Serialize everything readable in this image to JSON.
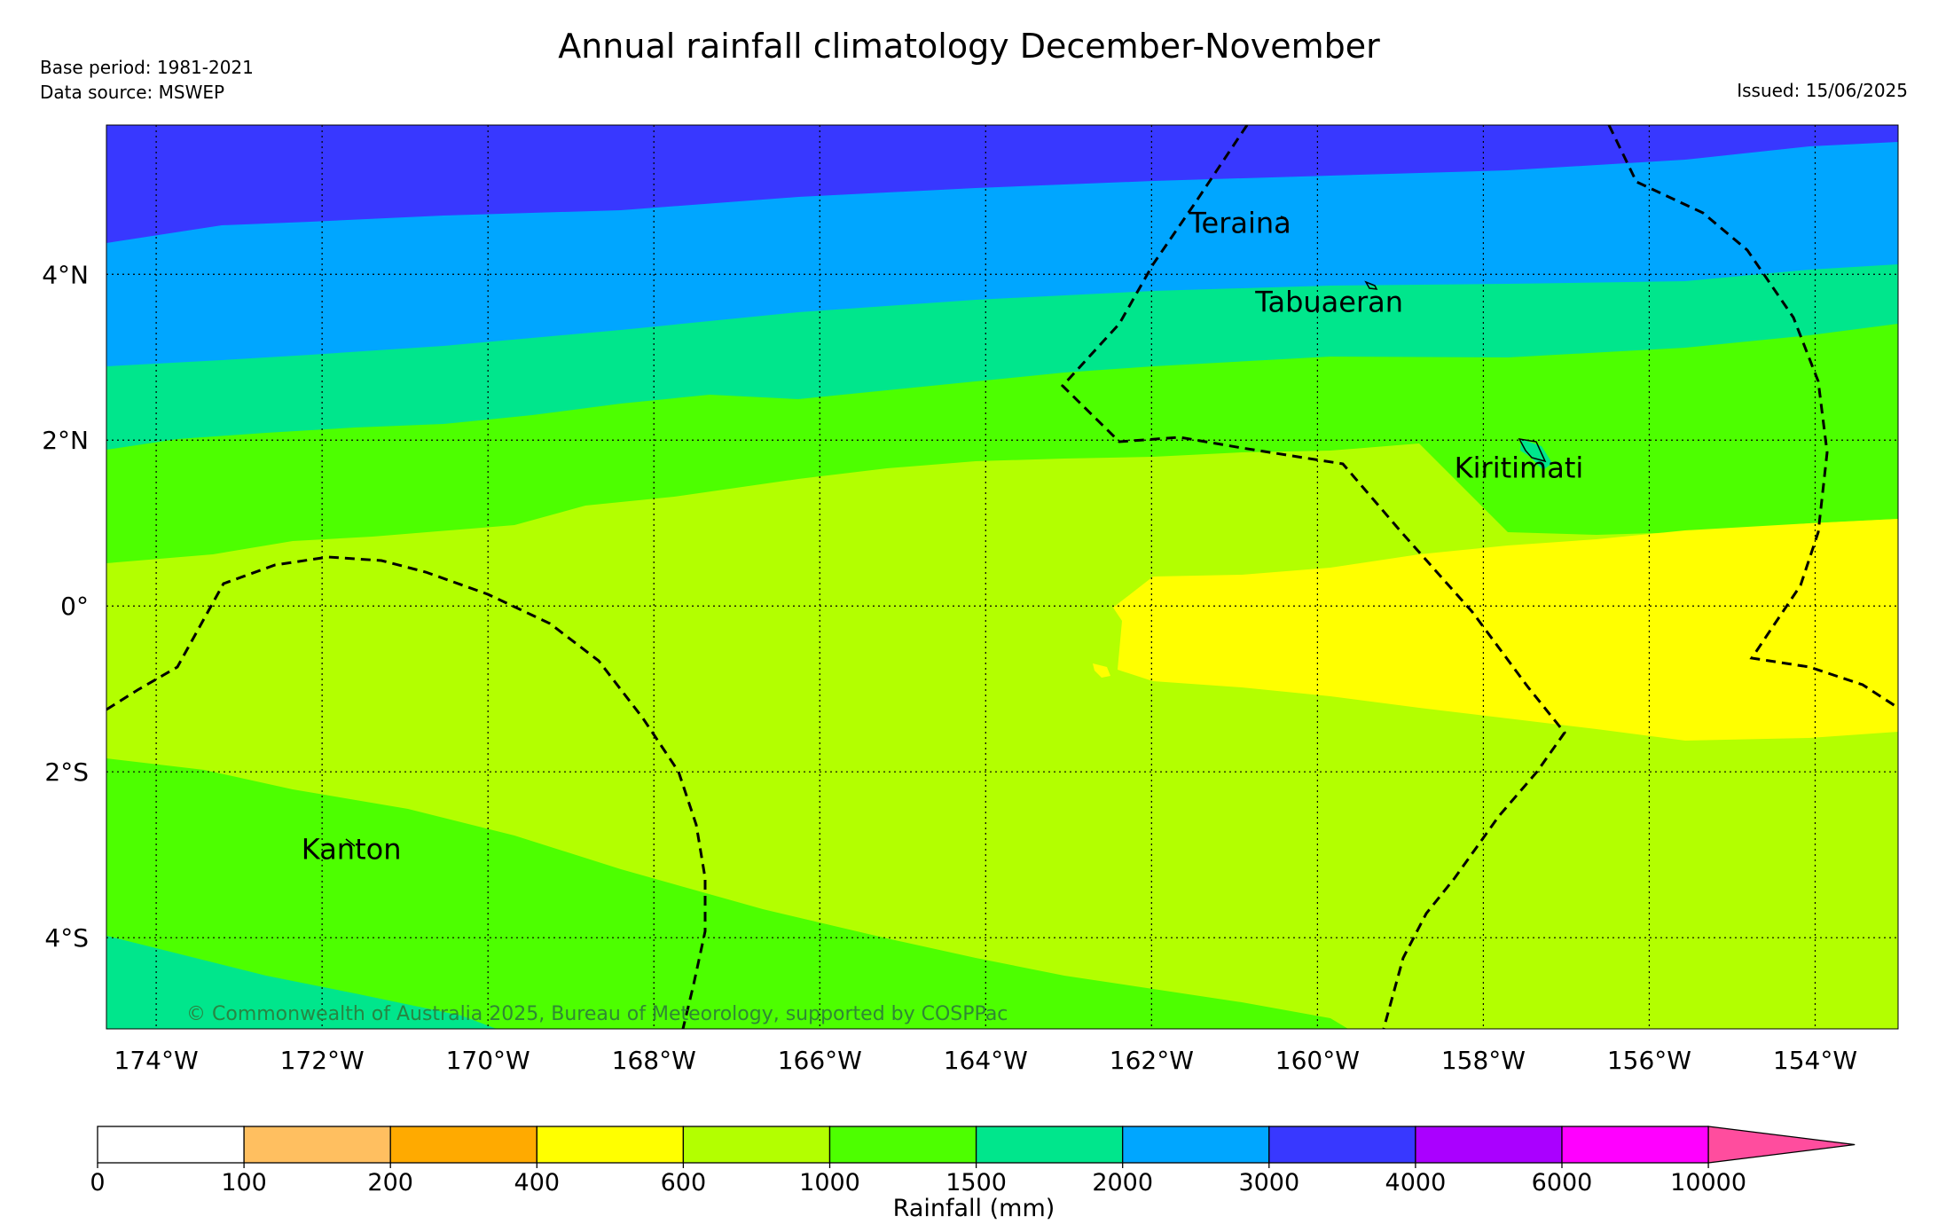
{
  "header": {
    "title": "Annual rainfall climatology December-November",
    "base_period": "Base period: 1981-2021",
    "data_source": "Data source: MSWEP",
    "issued": "Issued: 15/06/2025"
  },
  "map": {
    "lon_range": [
      -174.6,
      -153.0
    ],
    "lat_range": [
      -5.1,
      5.8
    ],
    "lon_ticks": [
      {
        "value": -174,
        "label": "174°W"
      },
      {
        "value": -172,
        "label": "172°W"
      },
      {
        "value": -170,
        "label": "170°W"
      },
      {
        "value": -168,
        "label": "168°W"
      },
      {
        "value": -166,
        "label": "166°W"
      },
      {
        "value": -164,
        "label": "164°W"
      },
      {
        "value": -162,
        "label": "162°W"
      },
      {
        "value": -160,
        "label": "160°W"
      },
      {
        "value": -158,
        "label": "158°W"
      },
      {
        "value": -156,
        "label": "156°W"
      },
      {
        "value": -154,
        "label": "154°W"
      }
    ],
    "lat_ticks": [
      {
        "value": 4,
        "label": "4°N"
      },
      {
        "value": 2,
        "label": "2°N"
      },
      {
        "value": 0,
        "label": "0°"
      },
      {
        "value": -2,
        "label": "2°S"
      },
      {
        "value": -4,
        "label": "4°S"
      }
    ],
    "places": [
      {
        "name": "Teraina",
        "lon": -161.55,
        "lat": 4.5
      },
      {
        "name": "Tabuaeran",
        "lon": -160.75,
        "lat": 3.55
      },
      {
        "name": "Kiritimati",
        "lon": -158.35,
        "lat": 1.55
      },
      {
        "name": "Kanton",
        "lon": -172.25,
        "lat": -3.05
      }
    ],
    "copyright": "© Commonwealth of Australia 2025, Bureau of Meteorology, supported by COSPPac",
    "band_colors": {
      "r600_1000": "#b3ff00",
      "r1000_1500": "#4dff00",
      "r1500_2000": "#00e68c",
      "r2000_3000": "#00a6ff",
      "r3000_4000": "#3838ff",
      "r400_600": "#ffff00"
    }
  },
  "colorbar": {
    "label": "Rainfall (mm)",
    "boundaries": [
      "0",
      "100",
      "200",
      "400",
      "600",
      "1000",
      "1500",
      "2000",
      "3000",
      "4000",
      "6000",
      "10000"
    ],
    "colors": [
      "#ffffff",
      "#ffbf60",
      "#ffaa00",
      "#ffff00",
      "#b3ff00",
      "#4dff00",
      "#00e68c",
      "#00a6ff",
      "#3838ff",
      "#aa00ff",
      "#ff00ff",
      "#ff4d9e"
    ]
  }
}
